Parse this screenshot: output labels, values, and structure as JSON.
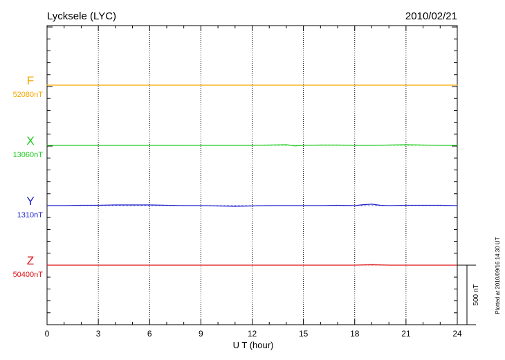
{
  "chart_data": {
    "type": "line",
    "title": "Lycksele (LYC)",
    "date": "2010/02/21",
    "xlabel": "U T (hour)",
    "xlim": [
      0,
      24
    ],
    "xticks": [
      "0",
      "3",
      "6",
      "9",
      "12",
      "15",
      "18",
      "21",
      "24"
    ],
    "grid": "vertical dotted lines every 3 hours",
    "scale_bar_label": "500 nT",
    "plotted_note": "Plotted at 2010/09/16 14:30 UT",
    "series": [
      {
        "name": "F",
        "baseline_label": "52080nT",
        "color": "#f5a800",
        "x": [
          0,
          3,
          6,
          9,
          12,
          15,
          18,
          21,
          24
        ],
        "values": [
          0,
          0,
          0,
          0,
          0,
          0,
          0,
          0,
          0
        ]
      },
      {
        "name": "X",
        "baseline_label": "13060nT",
        "color": "#22cc22",
        "x": [
          0,
          1,
          2,
          3,
          4,
          5,
          6,
          7,
          8,
          9,
          10,
          11,
          12,
          13,
          14,
          14.5,
          15,
          16,
          17,
          18,
          19,
          20,
          21,
          22,
          23,
          24
        ],
        "values": [
          0,
          0,
          0,
          0,
          0,
          0,
          0,
          0,
          0,
          0,
          0,
          0,
          0,
          3,
          6,
          -4,
          0,
          3,
          3,
          0,
          0,
          3,
          6,
          3,
          0,
          0
        ]
      },
      {
        "name": "Y",
        "baseline_label": "1310nT",
        "color": "#2222cc",
        "x": [
          0,
          1,
          2,
          3,
          4,
          5,
          6,
          7,
          8,
          9,
          10,
          11,
          12,
          13,
          14,
          15,
          16,
          17,
          18,
          18.5,
          19,
          19.5,
          20,
          21,
          22,
          23,
          24
        ],
        "values": [
          0,
          0,
          3,
          3,
          6,
          6,
          6,
          3,
          0,
          0,
          -3,
          -6,
          -3,
          0,
          0,
          0,
          0,
          3,
          0,
          8,
          12,
          3,
          0,
          3,
          3,
          3,
          0
        ]
      },
      {
        "name": "Z",
        "baseline_label": "50400nT",
        "color": "#dd1111",
        "x": [
          0,
          3,
          6,
          9,
          12,
          15,
          18,
          19,
          20,
          21,
          24
        ],
        "values": [
          0,
          0,
          0,
          0,
          0,
          0,
          0,
          4,
          0,
          0,
          0
        ]
      }
    ]
  }
}
